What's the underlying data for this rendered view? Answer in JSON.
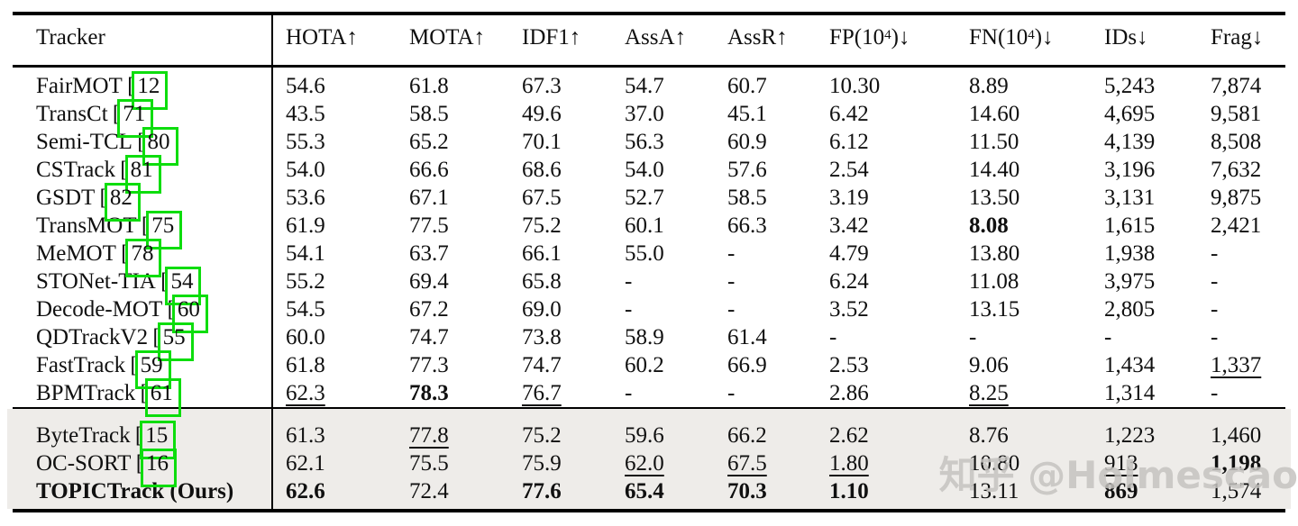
{
  "colors": {
    "citation_box_green": "#0ddd0d",
    "highlight_row_bg": "#eeece9",
    "rule_black": "#000000",
    "watermark_gray": "#c5c3c0"
  },
  "watermark": {
    "text": "知乎 @Holmescao"
  },
  "table": {
    "columns": [
      {
        "label": "Tracker",
        "arrow": ""
      },
      {
        "label": "HOTA",
        "arrow": "↑"
      },
      {
        "label": "MOTA",
        "arrow": "↑"
      },
      {
        "label": "IDF1",
        "arrow": "↑"
      },
      {
        "label": "AssA",
        "arrow": "↑"
      },
      {
        "label": "AssR",
        "arrow": "↑"
      },
      {
        "label": "FP(10",
        "sup": "4",
        "close": ")",
        "arrow": "↓"
      },
      {
        "label": "FN(10",
        "sup": "4",
        "close": ")",
        "arrow": "↓"
      },
      {
        "label": "IDs",
        "arrow": "↓"
      },
      {
        "label": "Frag",
        "arrow": "↓"
      }
    ],
    "rows": [
      {
        "name": "FairMOT",
        "cite": "12",
        "bold_name": false,
        "section": "main",
        "cells": [
          {
            "v": "54.6",
            "s": ""
          },
          {
            "v": "61.8",
            "s": ""
          },
          {
            "v": "67.3",
            "s": ""
          },
          {
            "v": "54.7",
            "s": ""
          },
          {
            "v": "60.7",
            "s": ""
          },
          {
            "v": "10.30",
            "s": ""
          },
          {
            "v": "8.89",
            "s": ""
          },
          {
            "v": "5,243",
            "s": ""
          },
          {
            "v": "7,874",
            "s": ""
          }
        ]
      },
      {
        "name": "TransCt",
        "cite": "71",
        "bold_name": false,
        "section": "main",
        "cells": [
          {
            "v": "43.5",
            "s": ""
          },
          {
            "v": "58.5",
            "s": ""
          },
          {
            "v": "49.6",
            "s": ""
          },
          {
            "v": "37.0",
            "s": ""
          },
          {
            "v": "45.1",
            "s": ""
          },
          {
            "v": "6.42",
            "s": ""
          },
          {
            "v": "14.60",
            "s": ""
          },
          {
            "v": "4,695",
            "s": ""
          },
          {
            "v": "9,581",
            "s": ""
          }
        ]
      },
      {
        "name": "Semi-TCL",
        "cite": "80",
        "bold_name": false,
        "section": "main",
        "cells": [
          {
            "v": "55.3",
            "s": ""
          },
          {
            "v": "65.2",
            "s": ""
          },
          {
            "v": "70.1",
            "s": ""
          },
          {
            "v": "56.3",
            "s": ""
          },
          {
            "v": "60.9",
            "s": ""
          },
          {
            "v": "6.12",
            "s": ""
          },
          {
            "v": "11.50",
            "s": ""
          },
          {
            "v": "4,139",
            "s": ""
          },
          {
            "v": "8,508",
            "s": ""
          }
        ]
      },
      {
        "name": "CSTrack",
        "cite": "81",
        "bold_name": false,
        "section": "main",
        "cells": [
          {
            "v": "54.0",
            "s": ""
          },
          {
            "v": "66.6",
            "s": ""
          },
          {
            "v": "68.6",
            "s": ""
          },
          {
            "v": "54.0",
            "s": ""
          },
          {
            "v": "57.6",
            "s": ""
          },
          {
            "v": "2.54",
            "s": ""
          },
          {
            "v": "14.40",
            "s": ""
          },
          {
            "v": "3,196",
            "s": ""
          },
          {
            "v": "7,632",
            "s": ""
          }
        ]
      },
      {
        "name": "GSDT",
        "cite": "82",
        "bold_name": false,
        "section": "main",
        "cells": [
          {
            "v": "53.6",
            "s": ""
          },
          {
            "v": "67.1",
            "s": ""
          },
          {
            "v": "67.5",
            "s": ""
          },
          {
            "v": "52.7",
            "s": ""
          },
          {
            "v": "58.5",
            "s": ""
          },
          {
            "v": "3.19",
            "s": ""
          },
          {
            "v": "13.50",
            "s": ""
          },
          {
            "v": "3,131",
            "s": ""
          },
          {
            "v": "9,875",
            "s": ""
          }
        ]
      },
      {
        "name": "TransMOT",
        "cite": "75",
        "bold_name": false,
        "section": "main",
        "cells": [
          {
            "v": "61.9",
            "s": ""
          },
          {
            "v": "77.5",
            "s": ""
          },
          {
            "v": "75.2",
            "s": ""
          },
          {
            "v": "60.1",
            "s": ""
          },
          {
            "v": "66.3",
            "s": ""
          },
          {
            "v": "3.42",
            "s": ""
          },
          {
            "v": "8.08",
            "s": "b"
          },
          {
            "v": "1,615",
            "s": ""
          },
          {
            "v": "2,421",
            "s": ""
          }
        ]
      },
      {
        "name": "MeMOT",
        "cite": "78",
        "bold_name": false,
        "section": "main",
        "cells": [
          {
            "v": "54.1",
            "s": ""
          },
          {
            "v": "63.7",
            "s": ""
          },
          {
            "v": "66.1",
            "s": ""
          },
          {
            "v": "55.0",
            "s": ""
          },
          {
            "v": "-",
            "s": ""
          },
          {
            "v": "4.79",
            "s": ""
          },
          {
            "v": "13.80",
            "s": ""
          },
          {
            "v": "1,938",
            "s": ""
          },
          {
            "v": "-",
            "s": ""
          }
        ]
      },
      {
        "name": "STONet-TIA",
        "cite": "54",
        "bold_name": false,
        "section": "main",
        "cells": [
          {
            "v": "55.2",
            "s": ""
          },
          {
            "v": "69.4",
            "s": ""
          },
          {
            "v": "65.8",
            "s": ""
          },
          {
            "v": "-",
            "s": ""
          },
          {
            "v": "-",
            "s": ""
          },
          {
            "v": "6.24",
            "s": ""
          },
          {
            "v": "11.08",
            "s": ""
          },
          {
            "v": "3,975",
            "s": ""
          },
          {
            "v": "-",
            "s": ""
          }
        ]
      },
      {
        "name": "Decode-MOT",
        "cite": "60",
        "bold_name": false,
        "section": "main",
        "cells": [
          {
            "v": "54.5",
            "s": ""
          },
          {
            "v": "67.2",
            "s": ""
          },
          {
            "v": "69.0",
            "s": ""
          },
          {
            "v": "-",
            "s": ""
          },
          {
            "v": "-",
            "s": ""
          },
          {
            "v": "3.52",
            "s": ""
          },
          {
            "v": "13.15",
            "s": ""
          },
          {
            "v": "2,805",
            "s": ""
          },
          {
            "v": "-",
            "s": ""
          }
        ]
      },
      {
        "name": "QDTrackV2",
        "cite": "55",
        "bold_name": false,
        "section": "main",
        "cells": [
          {
            "v": "60.0",
            "s": ""
          },
          {
            "v": "74.7",
            "s": ""
          },
          {
            "v": "73.8",
            "s": ""
          },
          {
            "v": "58.9",
            "s": ""
          },
          {
            "v": "61.4",
            "s": ""
          },
          {
            "v": "-",
            "s": ""
          },
          {
            "v": "-",
            "s": ""
          },
          {
            "v": "-",
            "s": ""
          },
          {
            "v": "-",
            "s": ""
          }
        ]
      },
      {
        "name": "FastTrack",
        "cite": "59",
        "bold_name": false,
        "section": "main",
        "cells": [
          {
            "v": "61.8",
            "s": ""
          },
          {
            "v": "77.3",
            "s": ""
          },
          {
            "v": "74.7",
            "s": ""
          },
          {
            "v": "60.2",
            "s": ""
          },
          {
            "v": "66.9",
            "s": ""
          },
          {
            "v": "2.53",
            "s": ""
          },
          {
            "v": "9.06",
            "s": ""
          },
          {
            "v": "1,434",
            "s": ""
          },
          {
            "v": "1,337",
            "s": "u"
          }
        ]
      },
      {
        "name": "BPMTrack",
        "cite": "61",
        "bold_name": false,
        "section": "main",
        "cells": [
          {
            "v": "62.3",
            "s": "u"
          },
          {
            "v": "78.3",
            "s": "b"
          },
          {
            "v": "76.7",
            "s": "u"
          },
          {
            "v": "-",
            "s": ""
          },
          {
            "v": "-",
            "s": ""
          },
          {
            "v": "2.86",
            "s": ""
          },
          {
            "v": "8.25",
            "s": "u"
          },
          {
            "v": "1,314",
            "s": ""
          },
          {
            "v": "-",
            "s": ""
          }
        ]
      },
      {
        "name": "ByteTrack",
        "cite": "15",
        "bold_name": false,
        "section": "highlight",
        "cells": [
          {
            "v": "61.3",
            "s": ""
          },
          {
            "v": "77.8",
            "s": "u"
          },
          {
            "v": "75.2",
            "s": ""
          },
          {
            "v": "59.6",
            "s": ""
          },
          {
            "v": "66.2",
            "s": ""
          },
          {
            "v": "2.62",
            "s": ""
          },
          {
            "v": "8.76",
            "s": ""
          },
          {
            "v": "1,223",
            "s": ""
          },
          {
            "v": "1,460",
            "s": ""
          }
        ]
      },
      {
        "name": "OC-SORT",
        "cite": "16",
        "bold_name": false,
        "section": "highlight",
        "cells": [
          {
            "v": "62.1",
            "s": ""
          },
          {
            "v": "75.5",
            "s": ""
          },
          {
            "v": "75.9",
            "s": ""
          },
          {
            "v": "62.0",
            "s": "u"
          },
          {
            "v": "67.5",
            "s": "u"
          },
          {
            "v": "1.80",
            "s": "u"
          },
          {
            "v": "10.80",
            "s": ""
          },
          {
            "v": "913",
            "s": "u"
          },
          {
            "v": "1,198",
            "s": "b"
          }
        ]
      },
      {
        "name": "TOPICTrack (Ours)",
        "cite": null,
        "bold_name": true,
        "section": "highlight",
        "cells": [
          {
            "v": "62.6",
            "s": "b"
          },
          {
            "v": "72.4",
            "s": ""
          },
          {
            "v": "77.6",
            "s": "b"
          },
          {
            "v": "65.4",
            "s": "b"
          },
          {
            "v": "70.3",
            "s": "b"
          },
          {
            "v": "1.10",
            "s": "b"
          },
          {
            "v": "13.11",
            "s": ""
          },
          {
            "v": "869",
            "s": "b"
          },
          {
            "v": "1,574",
            "s": ""
          }
        ]
      }
    ]
  }
}
